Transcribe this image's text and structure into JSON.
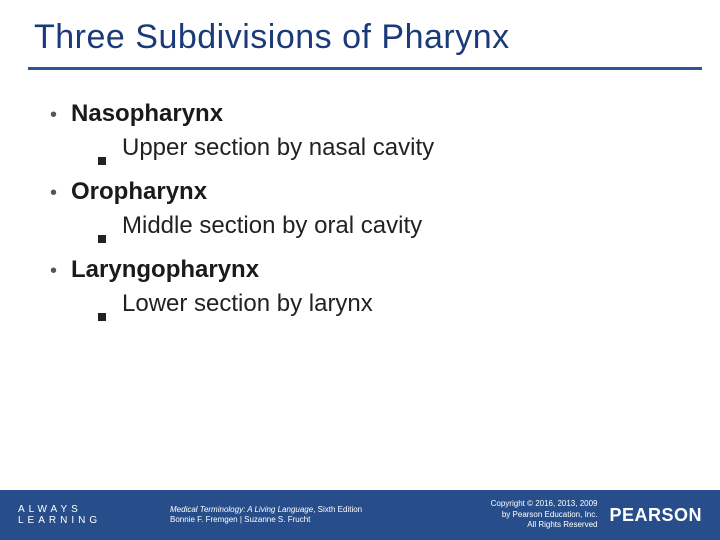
{
  "colors": {
    "title_color": "#1a3a7a",
    "underline_color": "#2a5599",
    "body_text": "#222222",
    "footer_bg": "#274e8a",
    "footer_text": "#ffffff",
    "background": "#ffffff"
  },
  "typography": {
    "title_fontsize": 34,
    "bullet_fontsize": 24,
    "footer_small_fontsize": 8,
    "pearson_fontsize": 18
  },
  "title": "Three Subdivisions of Pharynx",
  "bullets": [
    {
      "label": "Nasopharynx",
      "sub": "Upper section by nasal cavity"
    },
    {
      "label": "Oropharynx",
      "sub": "Middle section by  oral cavity"
    },
    {
      "label": "Laryngopharynx",
      "sub": "Lower section by larynx"
    }
  ],
  "footer": {
    "always": "ALWAYS LEARNING",
    "book_title": "Medical Terminology: A Living Language",
    "book_edition": ", Sixth Edition",
    "authors": "Bonnie F. Fremgen | Suzanne S. Frucht",
    "copyright_line1": "Copyright © 2016, 2013, 2009",
    "copyright_line2": "by Pearson Education, Inc.",
    "copyright_line3": "All Rights Reserved",
    "brand": "PEARSON"
  }
}
